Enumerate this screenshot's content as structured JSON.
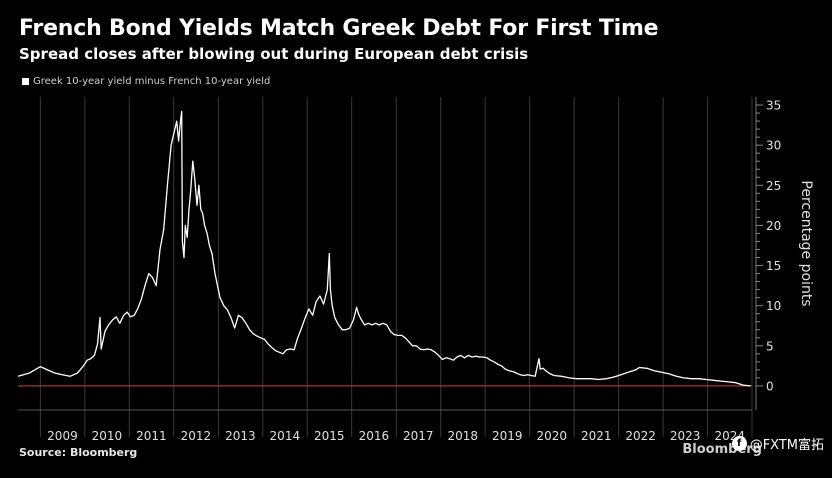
{
  "header": {
    "title": "French Bond Yields Match Greek Debt For First Time",
    "subtitle": "Spread closes after blowing out during European debt crisis"
  },
  "footer": {
    "source": "Source: Bloomberg",
    "brand": "Bloomberg",
    "watermark": "@FXTM富拓"
  },
  "colors": {
    "background": "#000000",
    "line": "#ffffff",
    "zero_line": "#c0392b",
    "grid": "#3a3a3a"
  },
  "chart_data": {
    "type": "line",
    "title": "French Bond Yields Match Greek Debt For First Time",
    "subtitle": "Spread closes after blowing out during European debt crisis",
    "ylabel": "Percentage points",
    "y_axis_side": "right",
    "ylim": [
      -3,
      36
    ],
    "xlim": [
      "2008-07-01",
      "2024-12-31"
    ],
    "y_ticks": [
      0,
      5,
      10,
      15,
      20,
      25,
      30,
      35
    ],
    "x_ticks": [
      "2009",
      "2010",
      "2011",
      "2012",
      "2013",
      "2014",
      "2015",
      "2016",
      "2017",
      "2018",
      "2019",
      "2020",
      "2021",
      "2022",
      "2023",
      "2024"
    ],
    "reference_line": {
      "y": 0,
      "color": "#c0392b"
    },
    "grid": "vertical year dividers",
    "series": [
      {
        "name": "Greek 10-year yield minus French 10-year yield",
        "color": "#ffffff",
        "points": [
          [
            "2008-07-01",
            1.2
          ],
          [
            "2008-10-01",
            1.6
          ],
          [
            "2009-01-01",
            2.4
          ],
          [
            "2009-03-01",
            2.0
          ],
          [
            "2009-05-01",
            1.6
          ],
          [
            "2009-07-01",
            1.4
          ],
          [
            "2009-09-01",
            1.2
          ],
          [
            "2009-11-01",
            1.6
          ],
          [
            "2009-12-15",
            2.4
          ],
          [
            "2010-01-20",
            3.2
          ],
          [
            "2010-02-20",
            3.4
          ],
          [
            "2010-03-20",
            3.8
          ],
          [
            "2010-04-15",
            5.2
          ],
          [
            "2010-05-05",
            8.5
          ],
          [
            "2010-05-15",
            4.6
          ],
          [
            "2010-06-15",
            6.8
          ],
          [
            "2010-07-15",
            7.6
          ],
          [
            "2010-08-15",
            8.2
          ],
          [
            "2010-09-15",
            8.6
          ],
          [
            "2010-10-15",
            7.8
          ],
          [
            "2010-11-15",
            8.8
          ],
          [
            "2010-12-15",
            9.2
          ],
          [
            "2011-01-10",
            8.6
          ],
          [
            "2011-02-10",
            8.8
          ],
          [
            "2011-03-10",
            9.6
          ],
          [
            "2011-04-10",
            10.8
          ],
          [
            "2011-05-10",
            12.5
          ],
          [
            "2011-06-10",
            14.0
          ],
          [
            "2011-07-10",
            13.5
          ],
          [
            "2011-08-10",
            12.5
          ],
          [
            "2011-09-10",
            17.0
          ],
          [
            "2011-10-10",
            19.5
          ],
          [
            "2011-11-10",
            25.0
          ],
          [
            "2011-12-10",
            30.0
          ],
          [
            "2012-01-10",
            32.0
          ],
          [
            "2012-01-25",
            33.0
          ],
          [
            "2012-02-10",
            30.5
          ],
          [
            "2012-02-25",
            33.0
          ],
          [
            "2012-03-06",
            34.2
          ],
          [
            "2012-03-12",
            18.0
          ],
          [
            "2012-03-25",
            16.0
          ],
          [
            "2012-04-05",
            20.0
          ],
          [
            "2012-04-20",
            18.5
          ],
          [
            "2012-05-05",
            22.0
          ],
          [
            "2012-05-20",
            24.5
          ],
          [
            "2012-06-05",
            28.0
          ],
          [
            "2012-06-20",
            26.0
          ],
          [
            "2012-07-10",
            22.5
          ],
          [
            "2012-07-25",
            25.0
          ],
          [
            "2012-08-10",
            22.0
          ],
          [
            "2012-08-25",
            21.5
          ],
          [
            "2012-09-10",
            20.0
          ],
          [
            "2012-10-01",
            19.0
          ],
          [
            "2012-10-20",
            17.5
          ],
          [
            "2012-11-10",
            16.5
          ],
          [
            "2012-12-05",
            14.0
          ],
          [
            "2012-12-25",
            12.5
          ],
          [
            "2013-01-15",
            11.0
          ],
          [
            "2013-02-15",
            10.0
          ],
          [
            "2013-03-15",
            9.5
          ],
          [
            "2013-04-15",
            8.5
          ],
          [
            "2013-05-15",
            7.2
          ],
          [
            "2013-06-15",
            8.8
          ],
          [
            "2013-07-15",
            8.5
          ],
          [
            "2013-08-15",
            7.8
          ],
          [
            "2013-09-15",
            7.0
          ],
          [
            "2013-10-15",
            6.5
          ],
          [
            "2013-11-15",
            6.2
          ],
          [
            "2013-12-15",
            6.0
          ],
          [
            "2014-01-15",
            5.8
          ],
          [
            "2014-02-15",
            5.2
          ],
          [
            "2014-03-15",
            4.8
          ],
          [
            "2014-04-15",
            4.4
          ],
          [
            "2014-05-15",
            4.2
          ],
          [
            "2014-06-15",
            4.0
          ],
          [
            "2014-07-15",
            4.5
          ],
          [
            "2014-08-15",
            4.6
          ],
          [
            "2014-09-15",
            4.5
          ],
          [
            "2014-10-15",
            6.0
          ],
          [
            "2014-11-15",
            7.2
          ],
          [
            "2014-12-15",
            8.5
          ],
          [
            "2015-01-15",
            9.6
          ],
          [
            "2015-02-15",
            8.8
          ],
          [
            "2015-03-15",
            10.5
          ],
          [
            "2015-04-15",
            11.2
          ],
          [
            "2015-05-15",
            10.2
          ],
          [
            "2015-06-15",
            12.0
          ],
          [
            "2015-07-01",
            16.5
          ],
          [
            "2015-07-10",
            12.0
          ],
          [
            "2015-07-25",
            10.0
          ],
          [
            "2015-08-15",
            8.5
          ],
          [
            "2015-09-15",
            7.6
          ],
          [
            "2015-10-15",
            7.0
          ],
          [
            "2015-11-15",
            7.0
          ],
          [
            "2015-12-15",
            7.2
          ],
          [
            "2016-01-15",
            8.2
          ],
          [
            "2016-02-10",
            9.8
          ],
          [
            "2016-02-25",
            9.0
          ],
          [
            "2016-03-15",
            8.4
          ],
          [
            "2016-04-15",
            7.6
          ],
          [
            "2016-05-15",
            7.8
          ],
          [
            "2016-06-15",
            7.6
          ],
          [
            "2016-07-15",
            7.8
          ],
          [
            "2016-08-15",
            7.6
          ],
          [
            "2016-09-15",
            7.8
          ],
          [
            "2016-10-15",
            7.6
          ],
          [
            "2016-11-15",
            6.8
          ],
          [
            "2016-12-15",
            6.4
          ],
          [
            "2017-01-15",
            6.3
          ],
          [
            "2017-02-15",
            6.3
          ],
          [
            "2017-03-15",
            6.0
          ],
          [
            "2017-04-15",
            5.5
          ],
          [
            "2017-05-15",
            5.0
          ],
          [
            "2017-06-15",
            5.0
          ],
          [
            "2017-07-15",
            4.6
          ],
          [
            "2017-08-15",
            4.5
          ],
          [
            "2017-09-15",
            4.6
          ],
          [
            "2017-10-15",
            4.5
          ],
          [
            "2017-11-15",
            4.2
          ],
          [
            "2017-12-15",
            3.8
          ],
          [
            "2018-01-15",
            3.3
          ],
          [
            "2018-02-15",
            3.5
          ],
          [
            "2018-03-15",
            3.4
          ],
          [
            "2018-04-15",
            3.2
          ],
          [
            "2018-05-15",
            3.6
          ],
          [
            "2018-06-15",
            3.8
          ],
          [
            "2018-07-15",
            3.5
          ],
          [
            "2018-08-15",
            3.8
          ],
          [
            "2018-09-15",
            3.6
          ],
          [
            "2018-10-15",
            3.7
          ],
          [
            "2018-11-15",
            3.6
          ],
          [
            "2018-12-15",
            3.6
          ],
          [
            "2019-01-15",
            3.5
          ],
          [
            "2019-02-15",
            3.2
          ],
          [
            "2019-03-15",
            3.0
          ],
          [
            "2019-04-15",
            2.7
          ],
          [
            "2019-05-15",
            2.5
          ],
          [
            "2019-06-15",
            2.1
          ],
          [
            "2019-07-15",
            1.9
          ],
          [
            "2019-08-15",
            1.8
          ],
          [
            "2019-09-15",
            1.6
          ],
          [
            "2019-10-15",
            1.4
          ],
          [
            "2019-11-15",
            1.3
          ],
          [
            "2019-12-15",
            1.4
          ],
          [
            "2020-01-15",
            1.3
          ],
          [
            "2020-02-15",
            1.2
          ],
          [
            "2020-03-18",
            3.4
          ],
          [
            "2020-03-28",
            2.1
          ],
          [
            "2020-04-20",
            2.2
          ],
          [
            "2020-05-20",
            1.8
          ],
          [
            "2020-06-20",
            1.5
          ],
          [
            "2020-07-20",
            1.3
          ],
          [
            "2020-09-20",
            1.2
          ],
          [
            "2020-11-20",
            1.0
          ],
          [
            "2021-01-20",
            0.9
          ],
          [
            "2021-03-20",
            0.9
          ],
          [
            "2021-05-20",
            0.9
          ],
          [
            "2021-07-20",
            0.8
          ],
          [
            "2021-09-20",
            0.9
          ],
          [
            "2021-11-20",
            1.1
          ],
          [
            "2022-01-20",
            1.4
          ],
          [
            "2022-03-20",
            1.7
          ],
          [
            "2022-05-20",
            2.0
          ],
          [
            "2022-06-20",
            2.3
          ],
          [
            "2022-08-20",
            2.2
          ],
          [
            "2022-10-20",
            1.9
          ],
          [
            "2022-12-20",
            1.7
          ],
          [
            "2023-02-20",
            1.5
          ],
          [
            "2023-04-20",
            1.2
          ],
          [
            "2023-06-20",
            1.0
          ],
          [
            "2023-08-20",
            0.9
          ],
          [
            "2023-10-20",
            0.9
          ],
          [
            "2023-12-20",
            0.8
          ],
          [
            "2024-02-20",
            0.7
          ],
          [
            "2024-04-20",
            0.6
          ],
          [
            "2024-06-20",
            0.5
          ],
          [
            "2024-08-20",
            0.4
          ],
          [
            "2024-10-20",
            0.1
          ],
          [
            "2024-12-20",
            0.0
          ]
        ]
      }
    ]
  }
}
